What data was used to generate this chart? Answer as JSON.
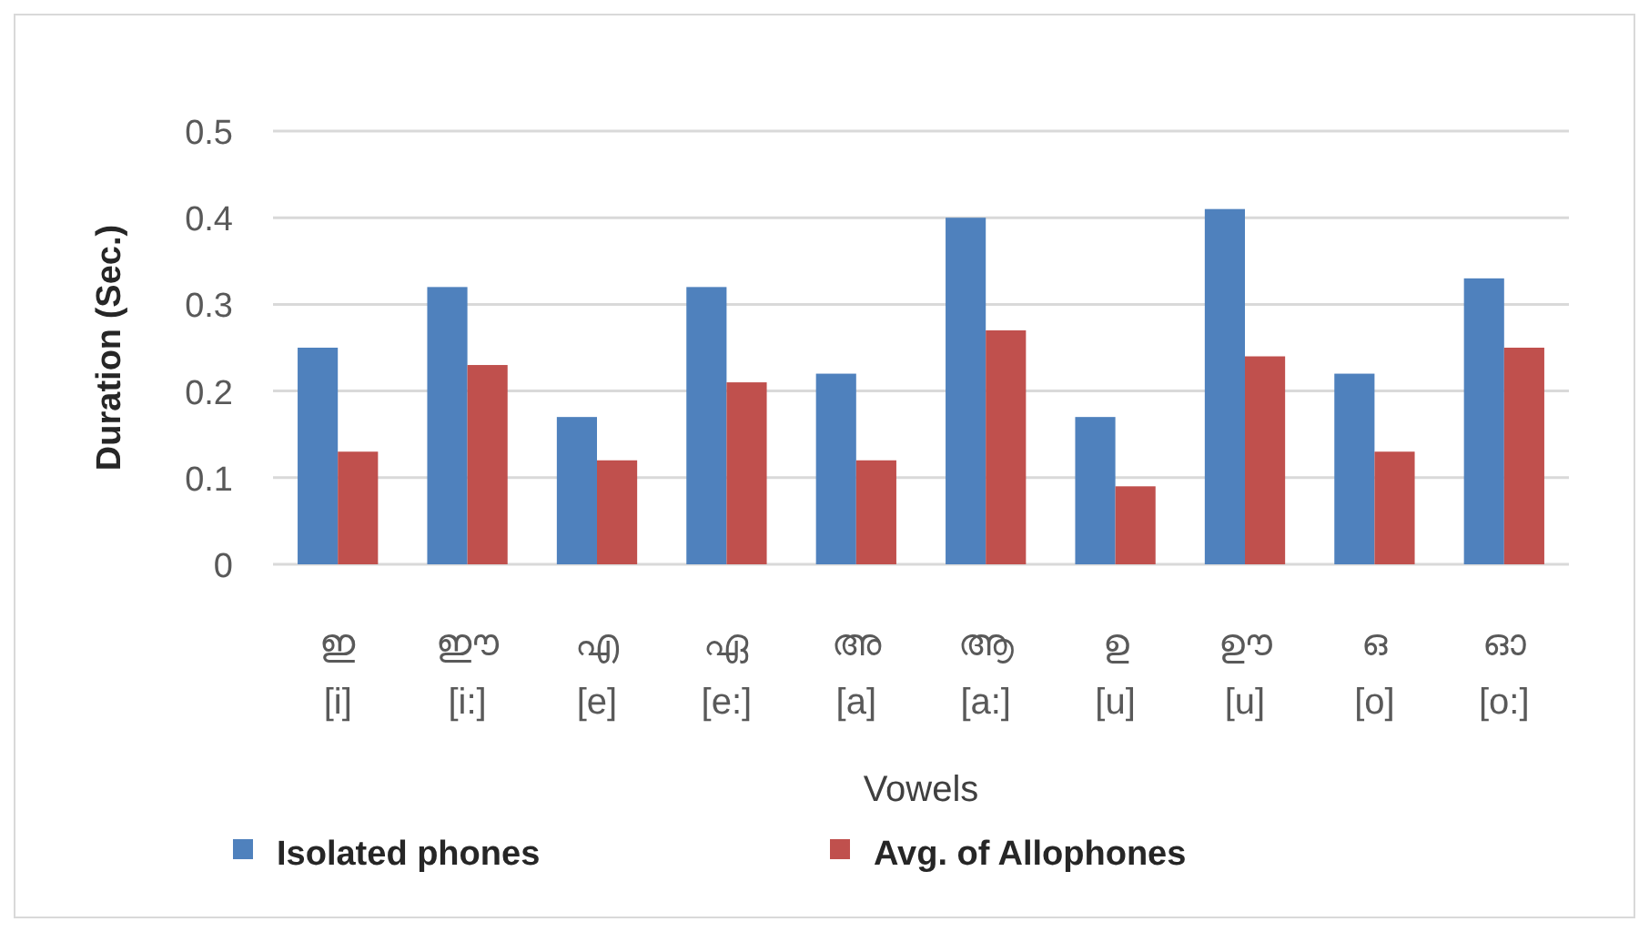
{
  "chart_data": {
    "type": "bar",
    "xlabel": "Vowels",
    "ylabel": "Duration (Sec.)",
    "categories": [
      "ഇ\n[i]",
      "ഈ\n[i:]",
      "എ\n[e]",
      "ഏ\n[e:]",
      "അ\n[a]",
      "ആ\n[a:]",
      "ഉ\n[u]",
      "ഊ\n[u]",
      "ഒ\n[o]",
      "ഓ\n[o:]"
    ],
    "series": [
      {
        "name": "Isolated phones",
        "color": "#4f81bd",
        "values": [
          0.25,
          0.32,
          0.17,
          0.32,
          0.22,
          0.4,
          0.17,
          0.41,
          0.22,
          0.33
        ]
      },
      {
        "name": "Avg. of Allophones",
        "color": "#c0504d",
        "values": [
          0.13,
          0.23,
          0.12,
          0.21,
          0.12,
          0.27,
          0.09,
          0.24,
          0.13,
          0.25
        ]
      }
    ],
    "ylim": [
      0,
      0.5
    ],
    "yticks": [
      0,
      0.1,
      0.2,
      0.3,
      0.4,
      0.5
    ],
    "grid": "y",
    "legend": "bottom left"
  }
}
